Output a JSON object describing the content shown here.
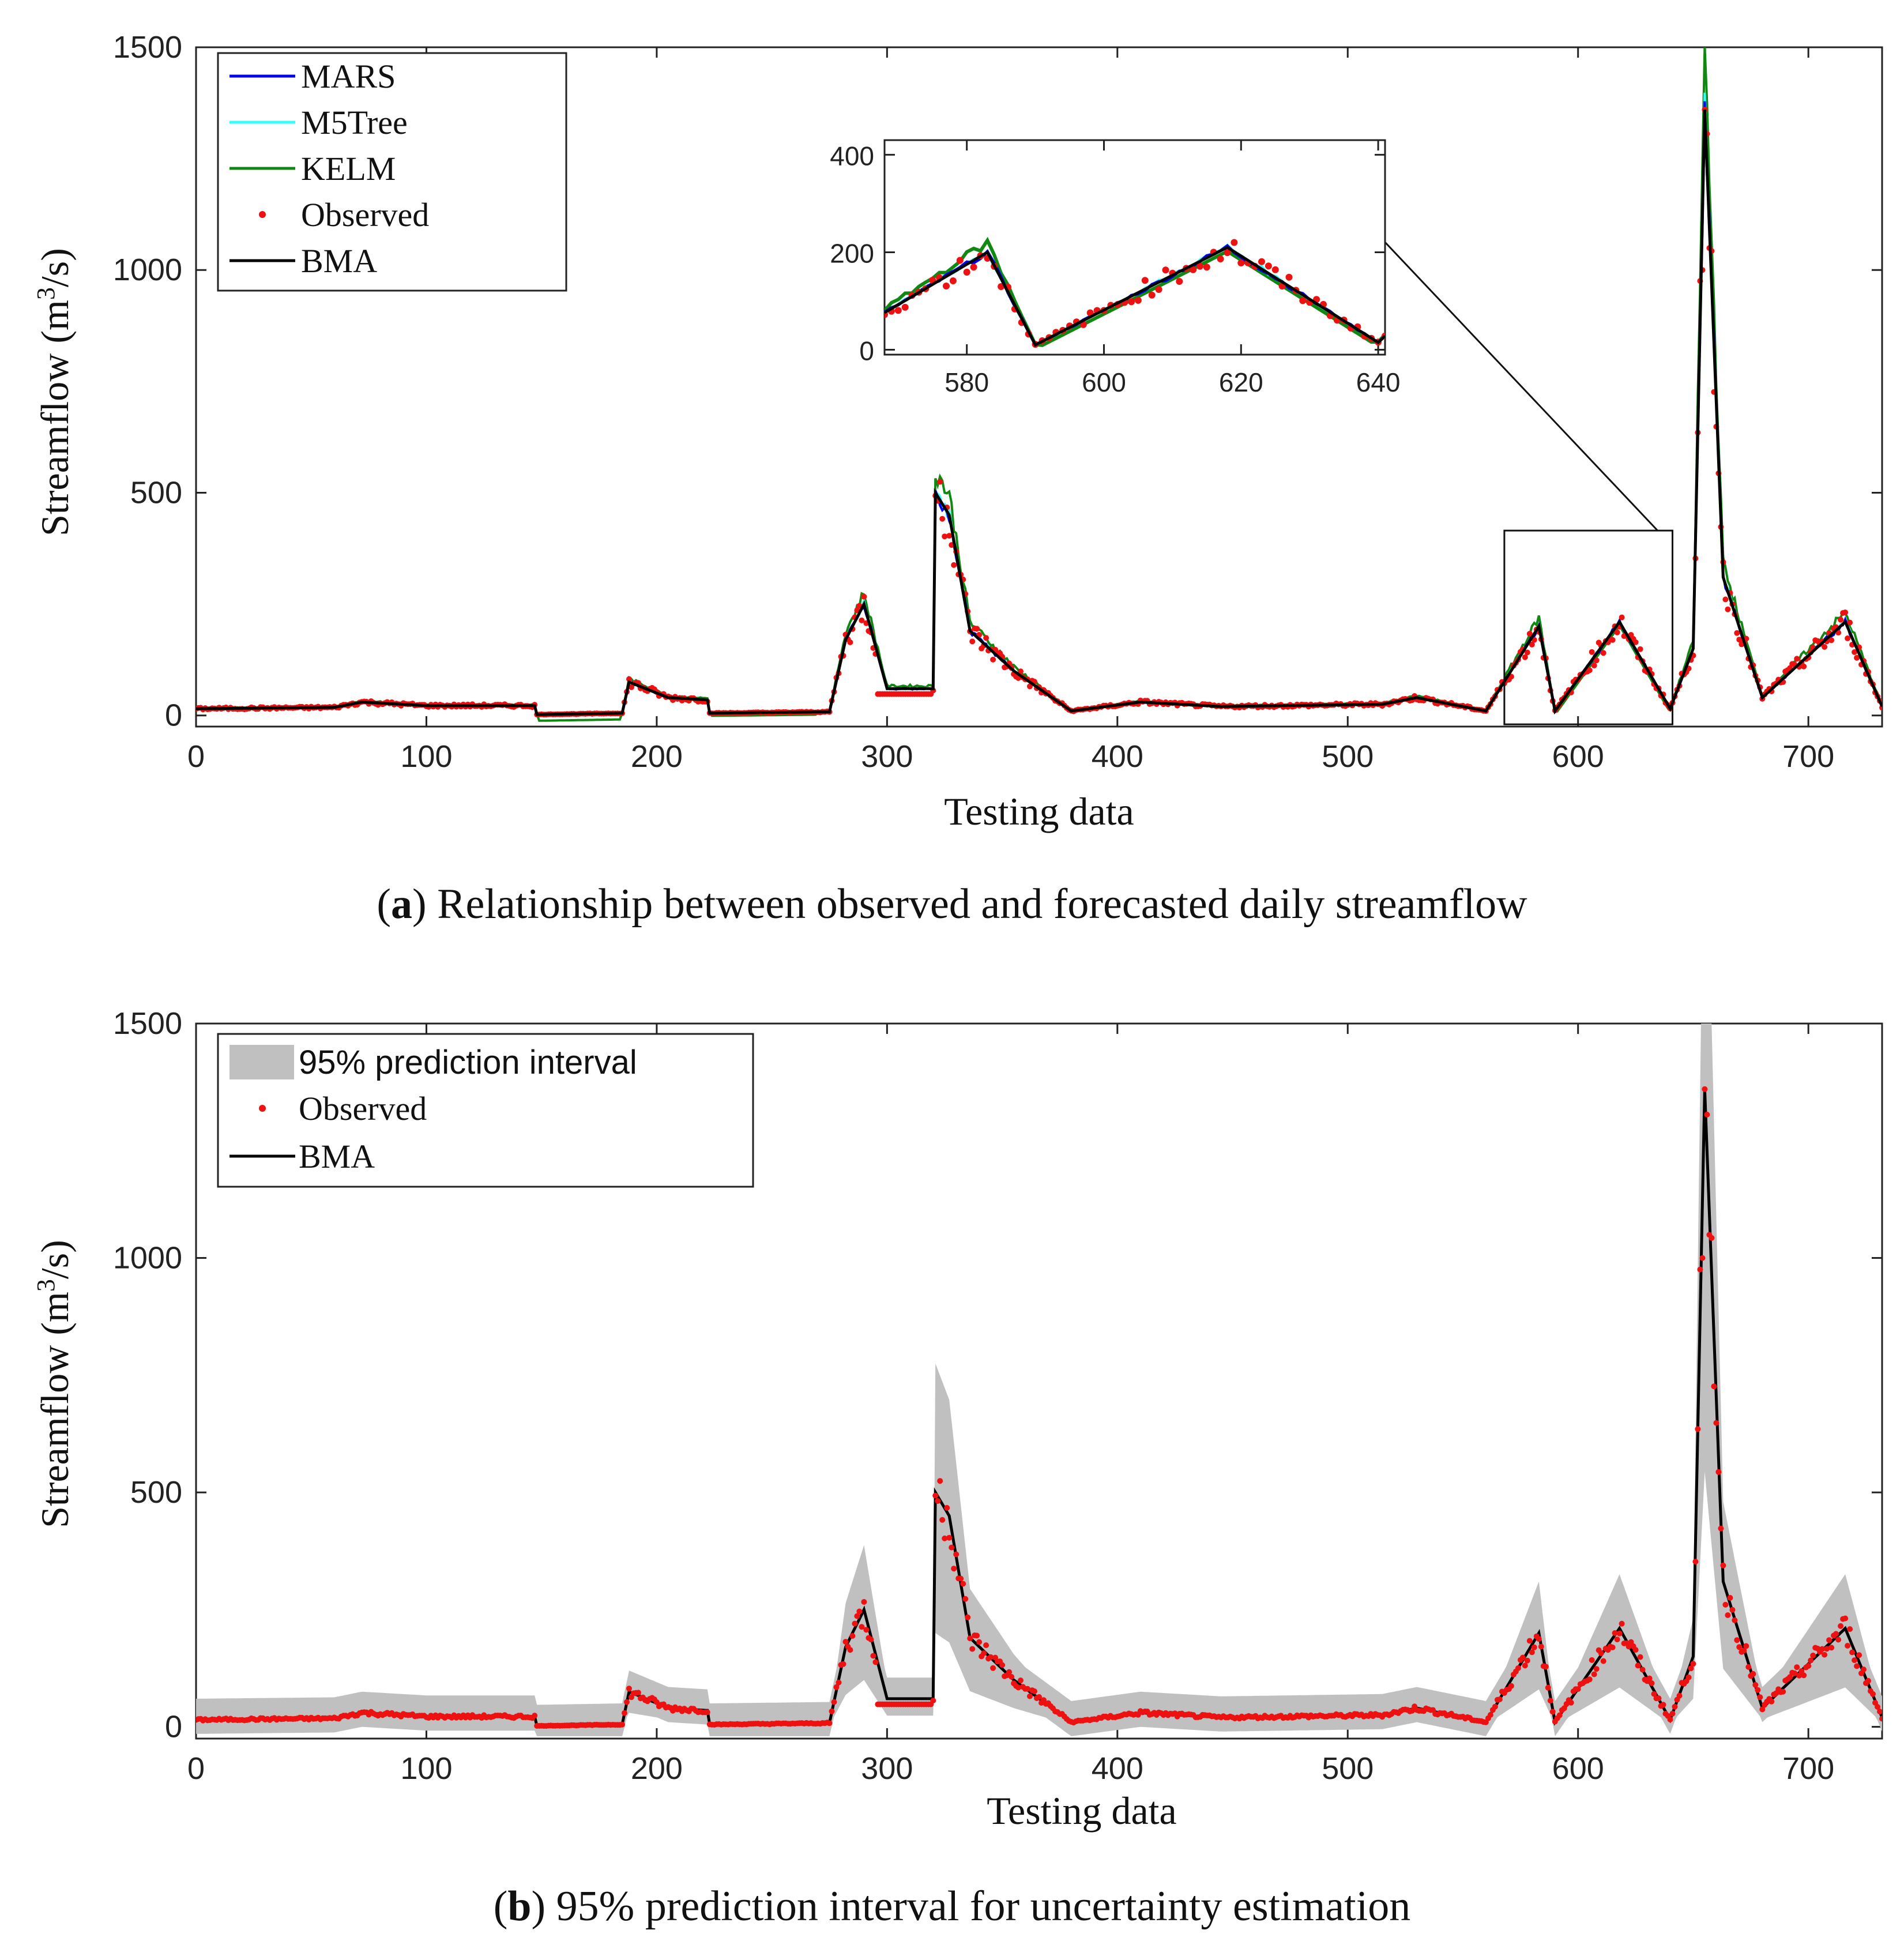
{
  "colors": {
    "mars": "#0000ee",
    "m5tree": "#33ffff",
    "kelm": "#118811",
    "observed": "#ee1111",
    "bma": "#000000",
    "interval": "#c0c0c0"
  },
  "chart_data": [
    {
      "panel": "a",
      "type": "line",
      "caption_label": "a",
      "caption_text": ") Relationship between observed and forecasted daily streamflow",
      "xlabel": "Testing data",
      "ylabel_main": "Streamflow (m",
      "ylabel_sup": "3",
      "ylabel_tail": "/s)",
      "xlim": [
        0,
        732
      ],
      "ylim": [
        -25,
        1500
      ],
      "xticks": [
        "0",
        "100",
        "200",
        "300",
        "400",
        "500",
        "600",
        "700"
      ],
      "yticks": [
        "0",
        "500",
        "1000",
        "1500"
      ],
      "legend": [
        "MARS",
        "M5Tree",
        "KELM",
        "Observed",
        "BMA"
      ],
      "legend_location": "top-left",
      "zoom_box": {
        "x": [
          568,
          641
        ],
        "y": [
          -20,
          415
        ]
      },
      "key_points": [
        [
          0,
          15
        ],
        [
          60,
          18
        ],
        [
          72,
          30
        ],
        [
          100,
          22
        ],
        [
          147,
          22
        ],
        [
          148,
          2
        ],
        [
          185,
          5
        ],
        [
          188,
          75
        ],
        [
          205,
          40
        ],
        [
          222,
          35
        ],
        [
          223,
          5
        ],
        [
          275,
          8
        ],
        [
          282,
          170
        ],
        [
          290,
          250
        ],
        [
          300,
          60
        ],
        [
          320,
          60
        ],
        [
          321,
          500
        ],
        [
          327,
          450
        ],
        [
          336,
          190
        ],
        [
          355,
          100
        ],
        [
          380,
          10
        ],
        [
          410,
          30
        ],
        [
          445,
          20
        ],
        [
          515,
          25
        ],
        [
          530,
          40
        ],
        [
          560,
          10
        ],
        [
          583,
          200
        ],
        [
          590,
          10
        ],
        [
          618,
          210
        ],
        [
          640,
          15
        ],
        [
          650,
          150
        ],
        [
          655,
          1360
        ],
        [
          663,
          310
        ],
        [
          680,
          40
        ],
        [
          716,
          210
        ],
        [
          732,
          20
        ]
      ],
      "inset": {
        "xlim": [
          568,
          641
        ],
        "ylim": [
          -10,
          430
        ],
        "xticks": [
          "580",
          "600",
          "620",
          "640"
        ],
        "yticks": [
          "0",
          "200",
          "400"
        ]
      }
    },
    {
      "panel": "b",
      "type": "line",
      "caption_label": "b",
      "caption_text": ") 95% prediction interval for uncertainty estimation",
      "xlabel": "Testing data",
      "ylabel_main": "Streamflow (m",
      "ylabel_sup": "3",
      "ylabel_tail": "/s)",
      "xlim": [
        0,
        732
      ],
      "ylim": [
        -25,
        1500
      ],
      "xticks": [
        "0",
        "100",
        "200",
        "300",
        "400",
        "500",
        "600",
        "700"
      ],
      "yticks": [
        "0",
        "500",
        "1000",
        "1500"
      ],
      "legend": [
        "95% prediction  interval",
        "Observed",
        "BMA"
      ],
      "legend_location": "top-left",
      "key_points": [
        [
          0,
          15
        ],
        [
          60,
          18
        ],
        [
          72,
          30
        ],
        [
          100,
          22
        ],
        [
          147,
          22
        ],
        [
          148,
          2
        ],
        [
          185,
          5
        ],
        [
          188,
          75
        ],
        [
          205,
          40
        ],
        [
          222,
          35
        ],
        [
          223,
          5
        ],
        [
          275,
          8
        ],
        [
          282,
          170
        ],
        [
          290,
          250
        ],
        [
          300,
          60
        ],
        [
          320,
          60
        ],
        [
          321,
          500
        ],
        [
          327,
          450
        ],
        [
          336,
          190
        ],
        [
          355,
          100
        ],
        [
          380,
          10
        ],
        [
          410,
          30
        ],
        [
          445,
          20
        ],
        [
          515,
          25
        ],
        [
          530,
          40
        ],
        [
          560,
          10
        ],
        [
          583,
          200
        ],
        [
          590,
          10
        ],
        [
          618,
          210
        ],
        [
          640,
          15
        ],
        [
          650,
          150
        ],
        [
          655,
          1360
        ],
        [
          663,
          310
        ],
        [
          680,
          40
        ],
        [
          716,
          210
        ],
        [
          732,
          20
        ]
      ]
    }
  ]
}
